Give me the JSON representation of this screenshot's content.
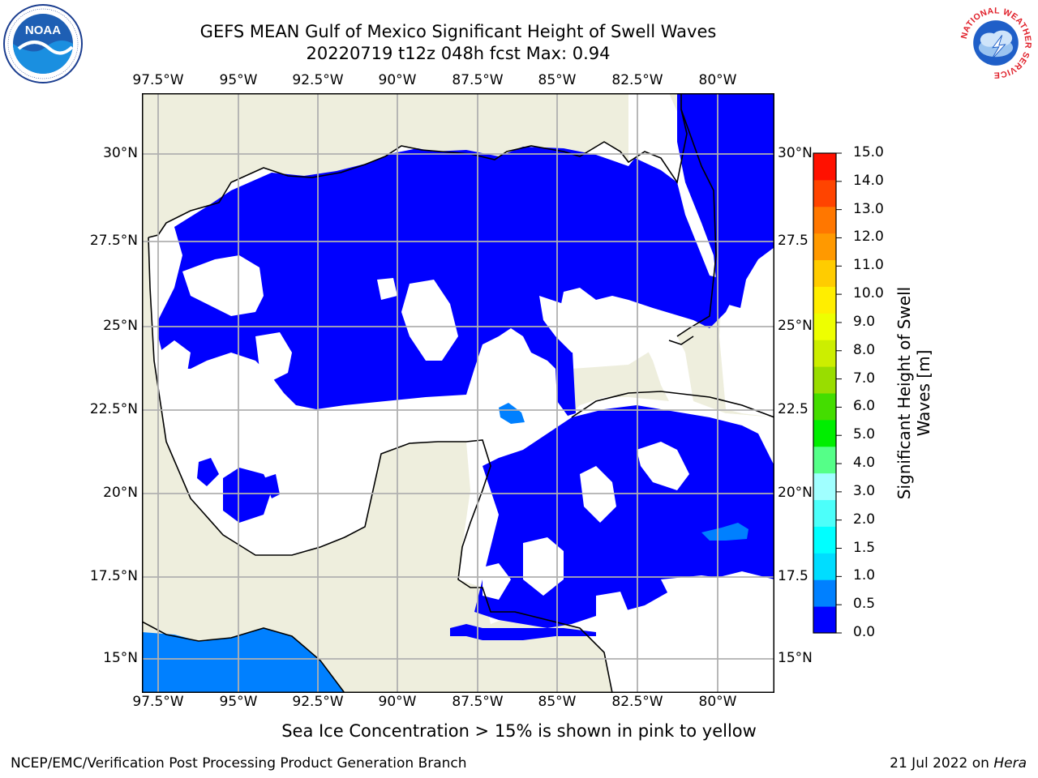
{
  "title_line1": "GEFS MEAN Gulf of Mexico Significant Height of Swell Waves",
  "title_line2": "20220719 t12z 048h fcst   Max: 0.94",
  "map": {
    "longitude_labels": [
      "97.5°W",
      "95°W",
      "92.5°W",
      "90°W",
      "87.5°W",
      "85°W",
      "82.5°W",
      "80°W"
    ],
    "latitude_labels_left": [
      "30°N",
      "27.5°N",
      "25°N",
      "22.5°N",
      "20°N",
      "17.5°N",
      "15°N"
    ],
    "latitude_labels_right": [
      "30°N",
      "27.5",
      "25°N",
      "22.5",
      "20°N",
      "17.5",
      "15°N"
    ],
    "extent": {
      "lon_min": -98,
      "lon_max": -78.5,
      "lat_min": 14,
      "lat_max": 32
    },
    "grid": true,
    "colors": {
      "land": "#eeeedd",
      "sea_no_data": "#ffffff",
      "swell_0_05": "#0000ff",
      "swell_05_10": "#0080ff"
    }
  },
  "colorbar": {
    "tick_labels": [
      "15.0",
      "14.0",
      "13.0",
      "12.0",
      "11.0",
      "10.0",
      "9.0",
      "8.0",
      "7.0",
      "6.0",
      "5.0",
      "4.0",
      "3.0",
      "2.0",
      "1.5",
      "1.0",
      "0.5",
      "0.0"
    ],
    "bin_colors_bottom_to_top": [
      "#0000ff",
      "#0080ff",
      "#00ddff",
      "#00ffff",
      "#4cfffa",
      "#a0ffff",
      "#55ff88",
      "#00ee00",
      "#44dd00",
      "#99dd00",
      "#ccee00",
      "#eeff00",
      "#ffee00",
      "#ffcc00",
      "#ff9900",
      "#ff7700",
      "#ff4400",
      "#ff1100"
    ],
    "label": "Significant Height of Swell Waves [m]",
    "label_line1": "Significant Height of Swell",
    "label_line2": "Waves [m]"
  },
  "footer": {
    "note": "Sea Ice Concentration > 15% is shown in pink to yellow",
    "left": "NCEP/EMC/Verification Post Processing Product Generation Branch",
    "right_prefix": "21 Jul 2022 on ",
    "right_machine": "Hera"
  },
  "logos": {
    "noaa_text": "NOAA",
    "nws_ring_text": "NATIONAL WEATHER SERVICE"
  }
}
